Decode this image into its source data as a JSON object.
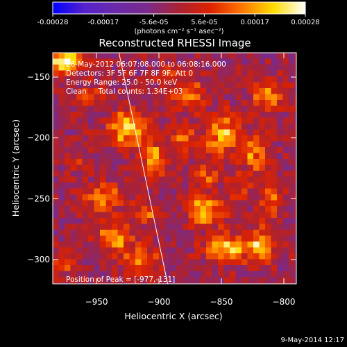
{
  "chart_data": {
    "type": "heatmap",
    "title": "Reconstructed RHESSI Image",
    "xlabel": "Heliocentric X (arcsec)",
    "ylabel": "Heliocentric Y (arcsec)",
    "xlim": [
      -985,
      -790
    ],
    "ylim": [
      -320,
      -130
    ],
    "xticks": [
      -950,
      -900,
      -850,
      -800
    ],
    "yticks": [
      -150,
      -200,
      -250,
      -300
    ],
    "colorbar": {
      "range": [
        -0.00028,
        0.00028
      ],
      "ticks": [
        "-0.00028",
        "-0.00017",
        "-5.6e-05",
        "5.6e-05",
        "0.00017",
        "0.00028"
      ],
      "unit": "(photons cm⁻² s⁻¹ asec⁻²)",
      "colormap": [
        "#0000ff",
        "#5522cc",
        "#6a2aa8",
        "#7a2a8a",
        "#aa2233",
        "#dd2200",
        "#ff7700",
        "#ffdd00",
        "#ffffff"
      ]
    },
    "annotations": [
      "26-May-2012 06:07:08.000 to 06:08:16.000",
      "Detectors: 3F 5F 6F 7F 8F 9F, Att 0",
      "Energy Range: 25.0 - 50.0 keV",
      "Clean     Total counts: 1.34E+03"
    ],
    "peak_label": "Position of Peak = [-977,-131]",
    "peak": [
      -977,
      -131
    ],
    "limb_line": [
      [
        -932,
        -130
      ],
      [
        -893,
        -320
      ]
    ],
    "hotspots": [
      {
        "x": -925,
        "y": -192,
        "value": 0.00026,
        "rx": 10,
        "ry": 9
      },
      {
        "x": -977,
        "y": -136,
        "value": 0.00028,
        "rx": 9,
        "ry": 8
      },
      {
        "x": -905,
        "y": -217,
        "value": 0.00018,
        "rx": 7,
        "ry": 10
      },
      {
        "x": -945,
        "y": -250,
        "value": 0.00014,
        "rx": 12,
        "ry": 8
      },
      {
        "x": -937,
        "y": -282,
        "value": 0.00017,
        "rx": 10,
        "ry": 8
      },
      {
        "x": -975,
        "y": -300,
        "value": 0.00012,
        "rx": 7,
        "ry": 7
      },
      {
        "x": -915,
        "y": -300,
        "value": 0.00015,
        "rx": 10,
        "ry": 8
      },
      {
        "x": -908,
        "y": -262,
        "value": 0.0001,
        "rx": 8,
        "ry": 8
      },
      {
        "x": -877,
        "y": -165,
        "value": 0.00016,
        "rx": 9,
        "ry": 9
      },
      {
        "x": -850,
        "y": -198,
        "value": 0.0002,
        "rx": 9,
        "ry": 12
      },
      {
        "x": -823,
        "y": -212,
        "value": 0.00016,
        "rx": 8,
        "ry": 10
      },
      {
        "x": -812,
        "y": -165,
        "value": 0.00018,
        "rx": 8,
        "ry": 9
      },
      {
        "x": -862,
        "y": -260,
        "value": 0.00022,
        "rx": 9,
        "ry": 9
      },
      {
        "x": -845,
        "y": -292,
        "value": 0.0002,
        "rx": 12,
        "ry": 8
      },
      {
        "x": -820,
        "y": -288,
        "value": 0.0002,
        "rx": 7,
        "ry": 10
      },
      {
        "x": -810,
        "y": -250,
        "value": 0.00014,
        "rx": 6,
        "ry": 12
      },
      {
        "x": -880,
        "y": -200,
        "value": 0.00012,
        "rx": 7,
        "ry": 8
      },
      {
        "x": -955,
        "y": -165,
        "value": 9e-05,
        "rx": 7,
        "ry": 7
      },
      {
        "x": -862,
        "y": -230,
        "value": 0.00011,
        "rx": 7,
        "ry": 7
      },
      {
        "x": -835,
        "y": -240,
        "value": 9e-05,
        "rx": 7,
        "ry": 7
      },
      {
        "x": -895,
        "y": -150,
        "value": 8e-05,
        "rx": 6,
        "ry": 6
      },
      {
        "x": -965,
        "y": -220,
        "value": 7e-05,
        "rx": 6,
        "ry": 6
      }
    ],
    "grid": false
  },
  "footer": {
    "date": "9-May-2014 12:17"
  }
}
